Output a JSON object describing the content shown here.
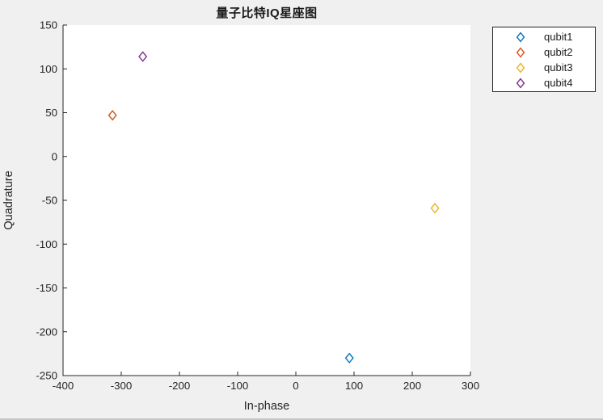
{
  "figure": {
    "background_color": "#f0f0f0",
    "plot_background_color": "#ffffff",
    "axis_color": "#262626",
    "text_color": "#262626",
    "title_color": "#1a1a1a"
  },
  "chart_data": {
    "type": "scatter",
    "title": "量子比特IQ星座图",
    "xlabel": "In-phase",
    "ylabel": "Quadrature",
    "xlim": [
      -400,
      300
    ],
    "ylim": [
      -250,
      150
    ],
    "xticks": [
      -400,
      -300,
      -200,
      -100,
      0,
      100,
      200,
      300
    ],
    "yticks": [
      -250,
      -200,
      -150,
      -100,
      -50,
      0,
      50,
      100,
      150
    ],
    "grid": false,
    "marker": "open-diamond",
    "legend_position": "outside-top-right",
    "series": [
      {
        "name": "qubit1",
        "color": "#0072BD",
        "points": [
          [
            92,
            -230
          ]
        ]
      },
      {
        "name": "qubit2",
        "color": "#D95319",
        "points": [
          [
            -315,
            47
          ]
        ]
      },
      {
        "name": "qubit3",
        "color": "#EDB120",
        "points": [
          [
            239,
            -59
          ]
        ]
      },
      {
        "name": "qubit4",
        "color": "#7E2F8E",
        "points": [
          [
            -263,
            114
          ]
        ]
      }
    ]
  }
}
